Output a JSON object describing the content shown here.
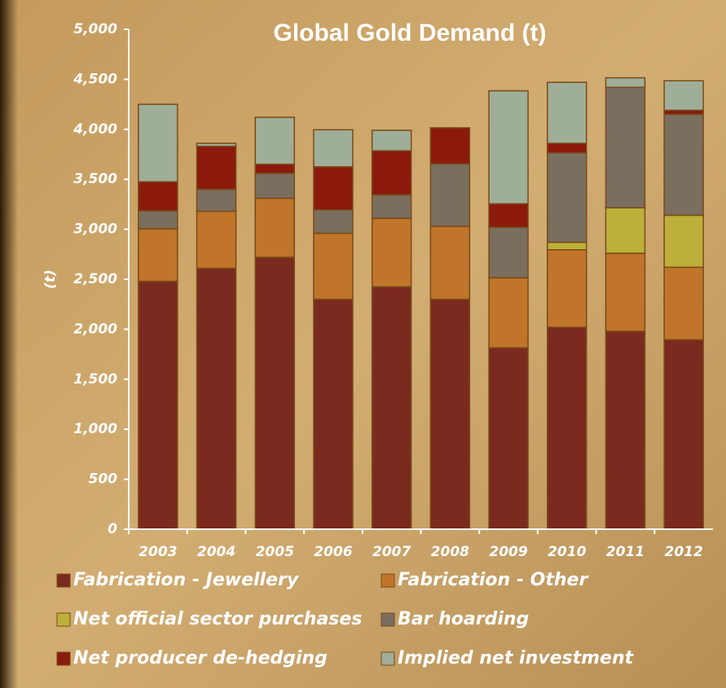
{
  "chart_data": {
    "type": "stacked_bar",
    "title": "Global Gold Demand (t)",
    "y_label": "(t)",
    "categories": [
      "2003",
      "2004",
      "2005",
      "2006",
      "2007",
      "2008",
      "2009",
      "2010",
      "2011",
      "2012"
    ],
    "series": [
      {
        "name": "Fabrication - Jewellery",
        "color": "#7b2a1f",
        "values": [
          2480,
          2610,
          2720,
          2300,
          2425,
          2300,
          1815,
          2020,
          1980,
          1895
        ]
      },
      {
        "name": "Fabrication - Other",
        "color": "#c0752a",
        "values": [
          525,
          570,
          590,
          660,
          685,
          730,
          700,
          775,
          780,
          725
        ]
      },
      {
        "name": "Net official sector purchases",
        "color": "#bcb03a",
        "values": [
          0,
          0,
          0,
          0,
          0,
          0,
          0,
          75,
          455,
          520
        ]
      },
      {
        "name": "Bar hoarding",
        "color": "#7a6e5e",
        "values": [
          180,
          220,
          250,
          235,
          235,
          625,
          505,
          895,
          1205,
          1010
        ]
      },
      {
        "name": "Net producer de-hedging",
        "color": "#8b1a0c",
        "values": [
          290,
          430,
          90,
          430,
          440,
          360,
          235,
          95,
          0,
          40
        ]
      },
      {
        "name": "Implied net investment",
        "color": "#9fae98",
        "values": [
          775,
          30,
          470,
          370,
          205,
          0,
          1130,
          610,
          95,
          295
        ]
      }
    ],
    "ylim": [
      0,
      5000
    ],
    "yticks": [
      0,
      500,
      {
        "value": 1000,
        "label": "1,000"
      },
      {
        "value": 1500,
        "label": "1,500"
      },
      {
        "value": 2000,
        "label": "2,000"
      },
      {
        "value": 2500,
        "label": "2,500"
      },
      {
        "value": 3000,
        "label": "3,000"
      },
      {
        "value": 3500,
        "label": "3,500"
      },
      {
        "value": 4000,
        "label": "4,000"
      },
      {
        "value": 4500,
        "label": "4,500"
      },
      {
        "value": 5000,
        "label": "5,000"
      }
    ]
  }
}
